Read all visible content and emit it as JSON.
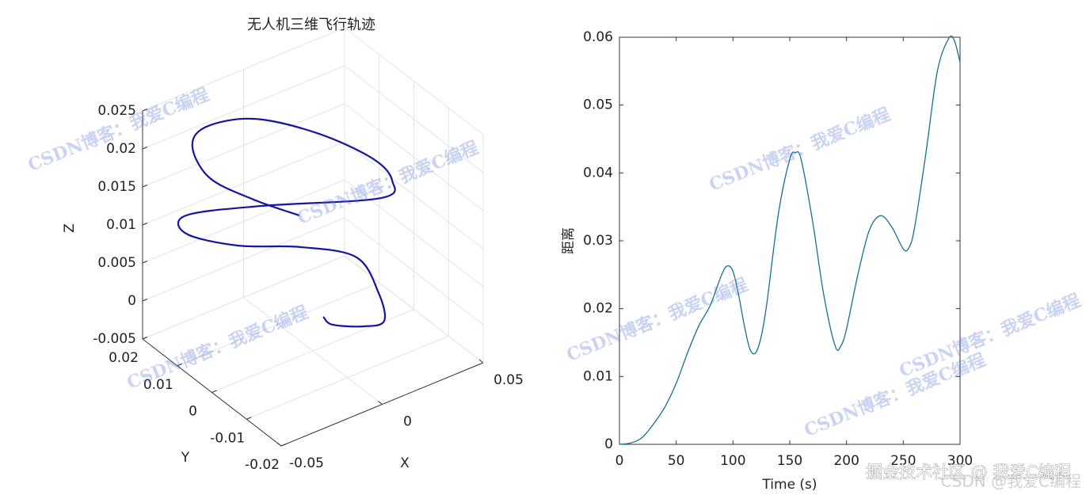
{
  "chart_data": [
    {
      "type": "line3d",
      "title": "无人机三维飞行轨迹",
      "xlabel": "X",
      "ylabel": "Y",
      "zlabel": "Z",
      "x": [
        0.0017,
        -0.0002,
        0.0078,
        0.0149,
        0.02,
        0.0214,
        0.0046,
        -0.0184,
        -0.0332,
        -0.0288,
        -0.0037,
        0.0348,
        0.0427,
        0.0393,
        0.0256,
        0.0048,
        -0.0203,
        -0.0329,
        -0.0373,
        -0.029,
        -0.0177
      ],
      "y": [
        -0.002,
        -0.0058,
        -0.0103,
        -0.0119,
        -0.0073,
        -0.0001,
        0.0061,
        0.011,
        0.0172,
        0.0198,
        0.0127,
        0.0008,
        0.002,
        0.0057,
        0.0138,
        0.0199,
        0.019,
        0.0156,
        0.008,
        0.0002,
        -0.0064
      ],
      "z": [
        0,
        0.0005,
        0.001,
        0.0015,
        0.003,
        0.005,
        0.006,
        0.007,
        0.008,
        0.009,
        0.01,
        0.011,
        0.012,
        0.014,
        0.016,
        0.018,
        0.02,
        0.02,
        0.019,
        0.018,
        0.017
      ],
      "color": "#1515a3",
      "xlim": [
        -0.05,
        0.05
      ],
      "ylim": [
        -0.02,
        0.02
      ],
      "zlim": [
        -0.005,
        0.025
      ],
      "xticks": [
        -0.05,
        0,
        0.05
      ],
      "yticks": [
        -0.02,
        -0.01,
        0,
        0.01,
        0.02
      ],
      "zticks": [
        -0.005,
        0,
        0.005,
        0.01,
        0.015,
        0.02,
        0.025
      ],
      "grid": true
    },
    {
      "type": "line",
      "xlabel": "Time (s)",
      "ylabel": "距离",
      "x": [
        0,
        10,
        20,
        30,
        40,
        50,
        60,
        70,
        80,
        90,
        95,
        100,
        105,
        110,
        115,
        120,
        125,
        130,
        140,
        150,
        155,
        160,
        170,
        180,
        190,
        195,
        200,
        210,
        220,
        230,
        240,
        250,
        255,
        260,
        270,
        280,
        290,
        295,
        300
      ],
      "values": [
        0,
        0.0002,
        0.001,
        0.003,
        0.0055,
        0.009,
        0.0135,
        0.0175,
        0.0205,
        0.025,
        0.0263,
        0.0255,
        0.022,
        0.0175,
        0.014,
        0.0135,
        0.016,
        0.021,
        0.034,
        0.042,
        0.043,
        0.042,
        0.033,
        0.022,
        0.0145,
        0.0145,
        0.017,
        0.025,
        0.0315,
        0.0337,
        0.032,
        0.0288,
        0.029,
        0.032,
        0.043,
        0.055,
        0.0598,
        0.0595,
        0.0563
      ],
      "color": "#1a6f8f",
      "xlim": [
        0,
        300
      ],
      "ylim": [
        0,
        0.06
      ],
      "xticks": [
        0,
        50,
        100,
        150,
        200,
        250,
        300
      ],
      "yticks": [
        0,
        0.01,
        0.02,
        0.03,
        0.04,
        0.05,
        0.06
      ],
      "grid": false
    }
  ],
  "watermark": "CSDN博客：我爱C编程",
  "footer_faint": "CSDN @我爱C编程",
  "footer": "掘金技术社区 @ 我爱C编程"
}
